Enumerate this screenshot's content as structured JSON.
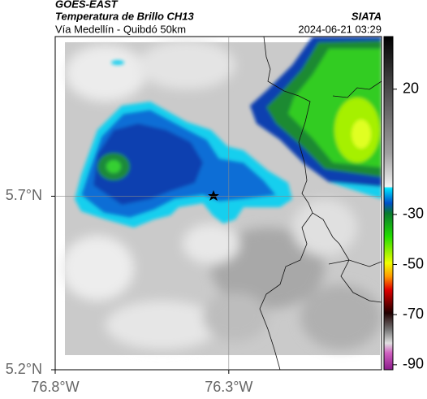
{
  "header": {
    "satellite": "GOES-EAST",
    "product": "Temperatura de Brillo CH13",
    "region": "Vía Medellín - Quibdó 50km",
    "source": "SIATA",
    "timestamp": "2024-06-21 03:29"
  },
  "map": {
    "xlim": [
      -76.8,
      -75.86
    ],
    "ylim": [
      5.2,
      6.16
    ],
    "xticks": [
      {
        "value": -76.8,
        "label": "76.8°W"
      },
      {
        "value": -76.3,
        "label": "76.3°W"
      }
    ],
    "yticks": [
      {
        "value": 5.2,
        "label": "5.2°N"
      },
      {
        "value": 5.7,
        "label": "5.7°N"
      }
    ],
    "colorbar": {
      "lim": [
        -92,
        41
      ],
      "ticks": [
        20,
        -30,
        -50,
        -70,
        -90
      ]
    }
  }
}
